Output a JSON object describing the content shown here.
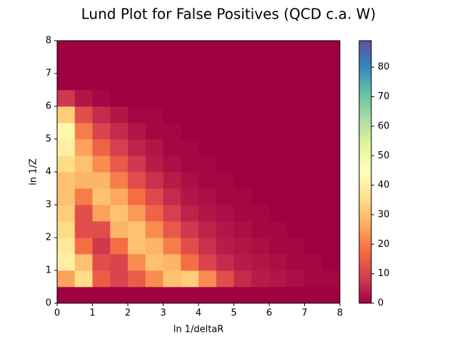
{
  "chart_data": {
    "type": "heatmap",
    "title": "Lund Plot for False Positives (QCD c.a. W)",
    "x_label": "ln 1/deltaR",
    "y_label": "ln 1/Z",
    "cmap": "Spectral",
    "xbins": [
      0,
      0.5,
      1,
      1.5,
      2,
      2.5,
      3,
      3.5,
      4,
      4.5,
      5,
      5.5,
      6,
      6.5,
      7,
      7.5,
      8
    ],
    "ybins": [
      0,
      0.5,
      1,
      1.5,
      2,
      2.5,
      3,
      3.5,
      4,
      4.5,
      5,
      5.5,
      6,
      6.5,
      7,
      7.5,
      8
    ],
    "z": [
      [
        0,
        0,
        0,
        0,
        0,
        0,
        0,
        0,
        0,
        0,
        0,
        0,
        0,
        0,
        0,
        0
      ],
      [
        25,
        35,
        15,
        10,
        15,
        22,
        30,
        32,
        22,
        12,
        6,
        4,
        3,
        2,
        1,
        1
      ],
      [
        40,
        30,
        12,
        10,
        22,
        30,
        28,
        18,
        10,
        6,
        4,
        3,
        2,
        1,
        1,
        0
      ],
      [
        38,
        18,
        8,
        18,
        30,
        28,
        20,
        12,
        7,
        4,
        3,
        2,
        1,
        1,
        0,
        0
      ],
      [
        35,
        12,
        12,
        28,
        30,
        22,
        14,
        8,
        5,
        3,
        2,
        1,
        1,
        0,
        0,
        0
      ],
      [
        32,
        12,
        25,
        30,
        24,
        16,
        9,
        5,
        3,
        2,
        1,
        1,
        0,
        0,
        0,
        0
      ],
      [
        30,
        20,
        30,
        26,
        18,
        11,
        6,
        3,
        2,
        1,
        1,
        0,
        0,
        0,
        0,
        0
      ],
      [
        30,
        28,
        28,
        20,
        12,
        7,
        4,
        2,
        1,
        1,
        0,
        0,
        0,
        0,
        0,
        0
      ],
      [
        35,
        30,
        22,
        14,
        8,
        4,
        2,
        1,
        1,
        0,
        0,
        0,
        0,
        0,
        0,
        0
      ],
      [
        40,
        25,
        16,
        9,
        5,
        3,
        1,
        1,
        0,
        0,
        0,
        0,
        0,
        0,
        0,
        0
      ],
      [
        42,
        20,
        10,
        6,
        3,
        1,
        1,
        0,
        0,
        0,
        0,
        0,
        0,
        0,
        0,
        0
      ],
      [
        32,
        12,
        6,
        3,
        1,
        1,
        0,
        0,
        0,
        0,
        0,
        0,
        0,
        0,
        0,
        0
      ],
      [
        8,
        3,
        1,
        0,
        0,
        0,
        0,
        0,
        0,
        0,
        0,
        0,
        0,
        0,
        0,
        0
      ],
      [
        0,
        0,
        0,
        0,
        0,
        0,
        0,
        0,
        0,
        0,
        0,
        0,
        0,
        0,
        0,
        0
      ],
      [
        0,
        0,
        0,
        0,
        0,
        0,
        0,
        0,
        0,
        0,
        0,
        0,
        0,
        0,
        0,
        0
      ],
      [
        0,
        0,
        0,
        0,
        0,
        0,
        0,
        0,
        0,
        0,
        0,
        0,
        0,
        0,
        0,
        0
      ]
    ],
    "xlim": [
      0,
      8
    ],
    "xticks": [
      0,
      1,
      2,
      3,
      4,
      5,
      6,
      7,
      8
    ],
    "ylim": [
      0,
      8
    ],
    "yticks": [
      0,
      1,
      2,
      3,
      4,
      5,
      6,
      7,
      8
    ],
    "clim": [
      0,
      89
    ],
    "cticks": [
      0,
      10,
      20,
      30,
      40,
      50,
      60,
      70,
      80
    ]
  }
}
